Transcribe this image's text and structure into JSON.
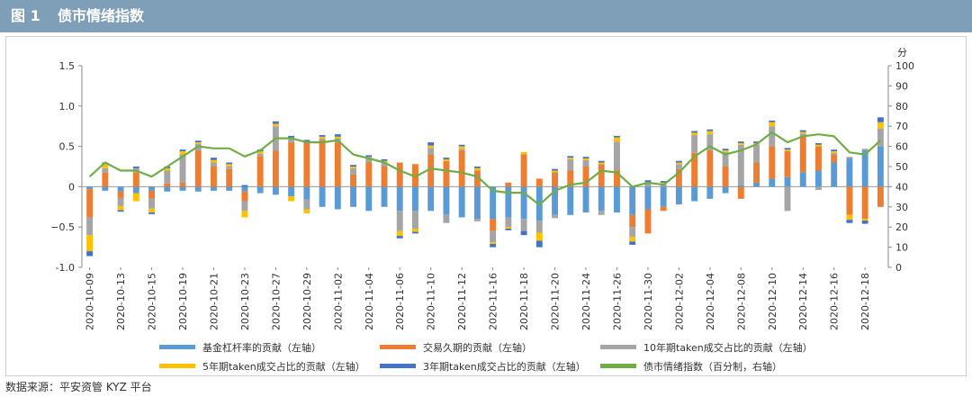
{
  "figure": {
    "number": "图 1",
    "title": "债市情绪指数",
    "source": "数据来源：平安资管 KYZ 平台"
  },
  "colors": {
    "title_bar": "#7f9fb8",
    "fund_leverage": "#5b9bd5",
    "trade_duration": "#ed7d31",
    "ten_year": "#a5a5a5",
    "five_year": "#ffc000",
    "three_year": "#4472c4",
    "sentiment": "#70ad47"
  },
  "chart_data": {
    "type": "bar",
    "stacked": true,
    "left_axis": {
      "ylim": [
        -1.0,
        1.5
      ],
      "ticks": [
        "-1.0",
        "−0.5",
        "0",
        "0.5",
        "1.0",
        "1.5"
      ]
    },
    "right_axis": {
      "label": "分",
      "ylim": [
        0,
        100
      ],
      "ticks": [
        "0",
        "10",
        "20",
        "30",
        "40",
        "50",
        "60",
        "70",
        "80",
        "90",
        "100"
      ]
    },
    "x_tick_labels": [
      "2020-10-09",
      "2020-10-13",
      "2020-10-15",
      "2020-10-19",
      "2020-10-21",
      "2020-10-23",
      "2020-10-27",
      "2020-10-29",
      "2020-11-02",
      "2020-11-04",
      "2020-11-06",
      "2020-11-10",
      "2020-11-12",
      "2020-11-16",
      "2020-11-18",
      "2020-11-20",
      "2020-11-24",
      "2020-11-26",
      "2020-11-30",
      "2020-12-02",
      "2020-12-04",
      "2020-12-08",
      "2020-12-10",
      "2020-12-14",
      "2020-12-16",
      "2020-12-18"
    ],
    "categories": [
      "2020-10-09",
      "2020-10-12",
      "2020-10-13",
      "2020-10-14",
      "2020-10-15",
      "2020-10-16",
      "2020-10-19",
      "2020-10-20",
      "2020-10-21",
      "2020-10-22",
      "2020-10-23",
      "2020-10-26",
      "2020-10-27",
      "2020-10-28",
      "2020-10-29",
      "2020-10-30",
      "2020-11-02",
      "2020-11-03",
      "2020-11-04",
      "2020-11-05",
      "2020-11-06",
      "2020-11-09",
      "2020-11-10",
      "2020-11-11",
      "2020-11-12",
      "2020-11-13",
      "2020-11-16",
      "2020-11-17",
      "2020-11-18",
      "2020-11-19",
      "2020-11-20",
      "2020-11-23",
      "2020-11-24",
      "2020-11-25",
      "2020-11-26",
      "2020-11-27",
      "2020-11-30",
      "2020-12-01",
      "2020-12-02",
      "2020-12-03",
      "2020-12-04",
      "2020-12-07",
      "2020-12-08",
      "2020-12-09",
      "2020-12-10",
      "2020-12-11",
      "2020-12-14",
      "2020-12-15",
      "2020-12-16",
      "2020-12-17",
      "2020-12-18",
      "2020-12-21"
    ],
    "series": [
      {
        "name": "基金杠杆率的贡献（左轴）",
        "axis": "left",
        "kind": "bar",
        "values": [
          -0.03,
          -0.05,
          -0.06,
          -0.08,
          -0.05,
          -0.06,
          -0.05,
          -0.06,
          -0.05,
          -0.05,
          -0.06,
          -0.08,
          -0.1,
          -0.12,
          -0.16,
          -0.25,
          -0.28,
          -0.25,
          -0.3,
          -0.25,
          -0.3,
          -0.3,
          -0.3,
          -0.35,
          -0.38,
          -0.4,
          -0.4,
          -0.38,
          -0.4,
          -0.42,
          -0.35,
          -0.35,
          -0.32,
          -0.3,
          -0.32,
          -0.35,
          -0.28,
          -0.25,
          -0.22,
          -0.18,
          -0.15,
          -0.08,
          0.02,
          0.05,
          0.1,
          0.12,
          0.18,
          0.2,
          0.3,
          0.35,
          0.45,
          0.5
        ]
      },
      {
        "name": "交易久期的贡献（左轴）",
        "axis": "left",
        "kind": "bar",
        "values": [
          -0.35,
          0.18,
          -0.08,
          0.18,
          -0.1,
          0.04,
          0.05,
          0.45,
          0.25,
          0.22,
          -0.12,
          0.38,
          0.45,
          0.55,
          0.55,
          0.58,
          0.55,
          0.15,
          0.3,
          0.25,
          0.3,
          0.28,
          0.4,
          0.32,
          0.45,
          0.2,
          -0.15,
          0.05,
          0.4,
          0.1,
          0.18,
          0.2,
          0.25,
          0.28,
          0.2,
          -0.15,
          -0.3,
          -0.05,
          0.22,
          0.42,
          0.45,
          0.25,
          -0.15,
          0.25,
          0.4,
          0.32,
          0.45,
          0.3,
          0.1,
          -0.35,
          -0.4,
          -0.25
        ]
      },
      {
        "name": "10年期taken成交占比的贡献（左轴）",
        "axis": "left",
        "kind": "bar",
        "values": [
          -0.22,
          0.05,
          -0.1,
          0.05,
          -0.12,
          0.16,
          0.35,
          0.08,
          0.05,
          0.03,
          -0.12,
          0.03,
          0.3,
          0.06,
          -0.12,
          0.02,
          0.05,
          0.08,
          0.05,
          0.05,
          -0.25,
          -0.22,
          0.08,
          -0.1,
          0.02,
          -0.03,
          -0.14,
          -0.12,
          -0.15,
          -0.15,
          -0.04,
          0.14,
          0.08,
          -0.05,
          0.36,
          -0.12,
          0.04,
          0.03,
          0.06,
          0.22,
          0.2,
          0.18,
          0.5,
          0.22,
          0.25,
          -0.3,
          0.03,
          -0.04,
          0.02,
          0.02,
          0.02,
          0.22
        ]
      },
      {
        "name": "5年期taken成交占比的贡献（左轴）",
        "axis": "left",
        "kind": "bar",
        "values": [
          -0.2,
          0.05,
          -0.05,
          -0.1,
          -0.05,
          0.03,
          0.04,
          0.02,
          0.03,
          0.03,
          -0.08,
          0.03,
          0.03,
          -0.06,
          -0.05,
          0.02,
          0.02,
          0.02,
          0.02,
          0.02,
          -0.06,
          -0.04,
          0.03,
          0.02,
          0.03,
          0.03,
          -0.02,
          -0.02,
          0.03,
          -0.1,
          0.02,
          0.02,
          0.02,
          0.02,
          0.05,
          -0.06,
          0.02,
          0.02,
          0.02,
          0.03,
          0.04,
          0.02,
          0.02,
          0.02,
          0.05,
          0.02,
          0.02,
          0.02,
          0.02,
          -0.06,
          -0.02,
          0.08
        ]
      },
      {
        "name": "3年期taken成交占比的贡献（左轴）",
        "axis": "left",
        "kind": "bar",
        "values": [
          -0.06,
          0.02,
          -0.02,
          0.02,
          -0.02,
          0.02,
          0.02,
          0.02,
          0.03,
          0.02,
          0.02,
          0.02,
          0.03,
          0.02,
          0.03,
          0.02,
          0.03,
          0.02,
          0.02,
          0.02,
          -0.03,
          -0.02,
          0.04,
          0.02,
          0.02,
          0.02,
          -0.04,
          -0.02,
          -0.05,
          -0.08,
          0.02,
          0.02,
          0.02,
          0.02,
          0.02,
          -0.04,
          0.02,
          0.02,
          0.02,
          0.02,
          0.02,
          0.02,
          0.02,
          0.02,
          0.02,
          0.02,
          0.02,
          0.02,
          0.02,
          -0.04,
          -0.04,
          0.06
        ]
      },
      {
        "name": "债市情绪指数（百分制，右轴）",
        "axis": "right",
        "kind": "line",
        "values": [
          45,
          52,
          48,
          48,
          45,
          50,
          55,
          60,
          59,
          59,
          55,
          58,
          64,
          64,
          62,
          62,
          63,
          56,
          54,
          52,
          48,
          45,
          49,
          48,
          47,
          45,
          38,
          37,
          37,
          31,
          38,
          41,
          42,
          48,
          47,
          40,
          42,
          41,
          47,
          55,
          60,
          56,
          58,
          61,
          67,
          62,
          65,
          66,
          65,
          57,
          56,
          63
        ]
      }
    ]
  }
}
